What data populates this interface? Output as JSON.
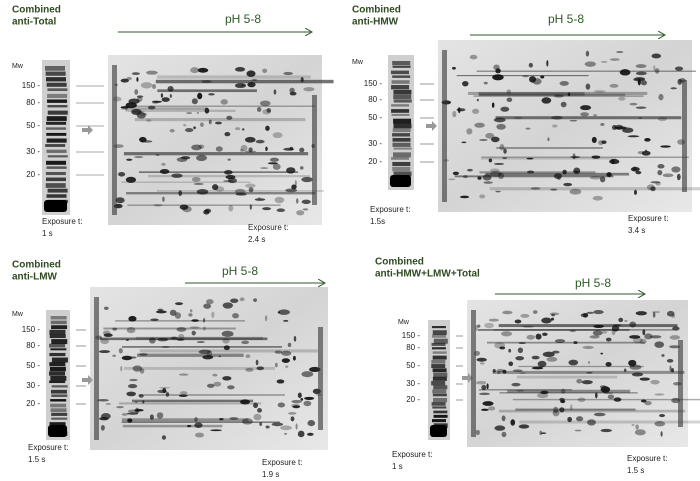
{
  "panels": [
    {
      "title": [
        "Combined",
        "anti-Total"
      ],
      "ph": "pH 5-8",
      "mw": "Mw",
      "markers": [
        "150 -",
        "80 -",
        "50 -",
        "30 -",
        "20 -"
      ],
      "ladder_exposure": [
        "Exposure t:",
        "1 s"
      ],
      "gel_exposure": [
        "Exposure t:",
        "2.4 s"
      ]
    },
    {
      "title": [
        "Combined",
        "anti-HMW"
      ],
      "ph": "pH 5-8",
      "mw": "Mw",
      "markers": [
        "150 -",
        "80 -",
        "50 -",
        "30 -",
        "20 -"
      ],
      "ladder_exposure": [
        "Exposure t:",
        "1.5s"
      ],
      "gel_exposure": [
        "Exposure t:",
        "3.4 s"
      ]
    },
    {
      "title": [
        "Combined",
        "anti-LMW"
      ],
      "ph": "pH 5-8",
      "mw": "Mw",
      "markers": [
        "150 -",
        "80 -",
        "50 -",
        "30 -",
        "20 -"
      ],
      "ladder_exposure": [
        "Exposure t:",
        "1.5 s"
      ],
      "gel_exposure": [
        "Exposure t:",
        "1.9 s"
      ]
    },
    {
      "title": [
        "Combined",
        "anti-HMW+LMW+Total"
      ],
      "ph": "pH 5-8",
      "mw": "Mw",
      "markers": [
        "150 -",
        "80 -",
        "50 -",
        "30 -",
        "20 -"
      ],
      "ladder_exposure": [
        "Exposure t:",
        "1 s"
      ],
      "gel_exposure": [
        "Exposure t:",
        "1.5 s"
      ]
    }
  ]
}
